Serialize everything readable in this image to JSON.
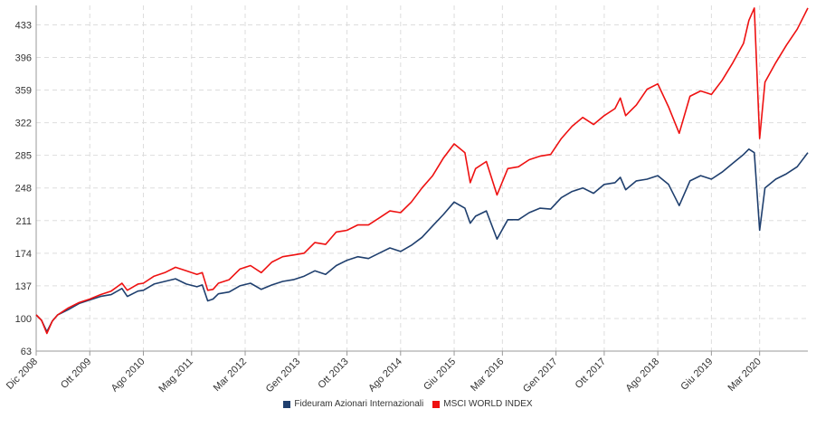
{
  "chart_data": {
    "type": "line",
    "title": "",
    "xlabel": "",
    "ylabel": "",
    "y_ticks": [
      63,
      100,
      137,
      174,
      211,
      248,
      285,
      322,
      359,
      396,
      433
    ],
    "ylim": [
      63,
      455
    ],
    "x_ticks": [
      "Dic 2008",
      "Ott 2009",
      "Ago 2010",
      "Mag 2011",
      "Mar 2012",
      "Gen 2013",
      "Ott 2013",
      "Ago 2014",
      "Giu 2015",
      "Mar 2016",
      "Gen 2017",
      "Ott 2017",
      "Ago 2018",
      "Giu 2019",
      "Mar 2020"
    ],
    "x_tick_dates": [
      "2008-12",
      "2009-10",
      "2010-08",
      "2011-05",
      "2012-03",
      "2013-01",
      "2013-10",
      "2014-08",
      "2015-06",
      "2016-03",
      "2017-01",
      "2017-10",
      "2018-08",
      "2019-06",
      "2020-03"
    ],
    "xlim": [
      "2008-12",
      "2020-12"
    ],
    "grid": true,
    "legend_position": "bottom-center",
    "series": [
      {
        "name": "Fideuram Azionari Internazionali",
        "color": "#1f3f6e",
        "x": [
          "2008-12",
          "2009-01",
          "2009-02",
          "2009-03",
          "2009-04",
          "2009-06",
          "2009-08",
          "2009-10",
          "2009-12",
          "2010-02",
          "2010-04",
          "2010-05",
          "2010-07",
          "2010-08",
          "2010-10",
          "2010-12",
          "2011-02",
          "2011-04",
          "2011-06",
          "2011-07",
          "2011-08",
          "2011-09",
          "2011-10",
          "2011-12",
          "2012-02",
          "2012-04",
          "2012-06",
          "2012-08",
          "2012-10",
          "2012-12",
          "2013-02",
          "2013-04",
          "2013-06",
          "2013-08",
          "2013-10",
          "2013-12",
          "2014-02",
          "2014-04",
          "2014-06",
          "2014-08",
          "2014-10",
          "2014-12",
          "2015-02",
          "2015-04",
          "2015-06",
          "2015-08",
          "2015-09",
          "2015-10",
          "2015-12",
          "2016-02",
          "2016-04",
          "2016-06",
          "2016-08",
          "2016-10",
          "2016-12",
          "2017-02",
          "2017-04",
          "2017-06",
          "2017-08",
          "2017-10",
          "2017-12",
          "2018-01",
          "2018-02",
          "2018-04",
          "2018-06",
          "2018-08",
          "2018-10",
          "2018-12",
          "2019-02",
          "2019-04",
          "2019-06",
          "2019-08",
          "2019-10",
          "2019-12",
          "2020-01",
          "2020-02",
          "2020-03",
          "2020-04",
          "2020-06",
          "2020-08",
          "2020-10",
          "2020-12"
        ],
        "values": [
          104,
          98,
          85,
          97,
          104,
          110,
          117,
          121,
          125,
          127,
          134,
          125,
          131,
          132,
          139,
          142,
          145,
          139,
          136,
          138,
          120,
          122,
          128,
          130,
          137,
          140,
          133,
          138,
          142,
          144,
          148,
          154,
          150,
          160,
          166,
          170,
          168,
          174,
          180,
          176,
          183,
          192,
          205,
          218,
          232,
          225,
          208,
          216,
          222,
          190,
          212,
          212,
          220,
          225,
          224,
          237,
          244,
          248,
          242,
          252,
          254,
          260,
          246,
          256,
          258,
          262,
          252,
          228,
          256,
          262,
          258,
          266,
          276,
          286,
          292,
          288,
          200,
          248,
          258,
          264,
          272,
          288
        ]
      },
      {
        "name": "MSCI WORLD INDEX",
        "color": "#ee1111",
        "x": [
          "2008-12",
          "2009-01",
          "2009-02",
          "2009-03",
          "2009-04",
          "2009-06",
          "2009-08",
          "2009-10",
          "2009-12",
          "2010-02",
          "2010-04",
          "2010-05",
          "2010-07",
          "2010-08",
          "2010-10",
          "2010-12",
          "2011-02",
          "2011-04",
          "2011-06",
          "2011-07",
          "2011-08",
          "2011-09",
          "2011-10",
          "2011-12",
          "2012-02",
          "2012-04",
          "2012-06",
          "2012-08",
          "2012-10",
          "2012-12",
          "2013-02",
          "2013-04",
          "2013-06",
          "2013-08",
          "2013-10",
          "2013-12",
          "2014-02",
          "2014-04",
          "2014-06",
          "2014-08",
          "2014-10",
          "2014-12",
          "2015-02",
          "2015-04",
          "2015-06",
          "2015-08",
          "2015-09",
          "2015-10",
          "2015-12",
          "2016-02",
          "2016-04",
          "2016-06",
          "2016-08",
          "2016-10",
          "2016-12",
          "2017-02",
          "2017-04",
          "2017-06",
          "2017-08",
          "2017-10",
          "2017-12",
          "2018-01",
          "2018-02",
          "2018-04",
          "2018-06",
          "2018-08",
          "2018-10",
          "2018-12",
          "2019-02",
          "2019-04",
          "2019-06",
          "2019-08",
          "2019-10",
          "2019-12",
          "2020-01",
          "2020-02",
          "2020-03",
          "2020-04",
          "2020-06",
          "2020-08",
          "2020-10",
          "2020-12"
        ],
        "values": [
          104,
          98,
          83,
          97,
          104,
          112,
          118,
          122,
          127,
          131,
          140,
          132,
          139,
          140,
          148,
          152,
          158,
          154,
          150,
          152,
          132,
          133,
          140,
          144,
          156,
          160,
          152,
          164,
          170,
          172,
          174,
          186,
          184,
          198,
          200,
          206,
          206,
          214,
          222,
          220,
          232,
          248,
          262,
          282,
          298,
          288,
          254,
          270,
          278,
          240,
          270,
          272,
          280,
          284,
          286,
          304,
          318,
          328,
          320,
          330,
          338,
          350,
          330,
          342,
          360,
          366,
          340,
          310,
          352,
          358,
          354,
          370,
          390,
          412,
          438,
          452,
          304,
          368,
          390,
          410,
          428,
          452
        ]
      }
    ]
  }
}
